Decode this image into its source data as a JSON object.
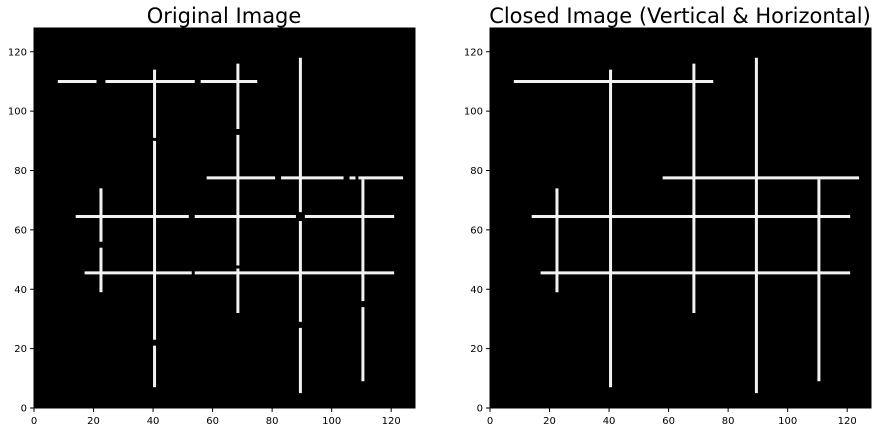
{
  "figure": {
    "background": "#ffffff",
    "panel_background": "#000000",
    "line_color": "#f2f2f2"
  },
  "chart_data": [
    {
      "type": "image",
      "title": "Original Image",
      "xlabel": "",
      "ylabel": "",
      "xlim": [
        0,
        128
      ],
      "ylim": [
        0,
        128
      ],
      "xticks": [
        0,
        20,
        40,
        60,
        80,
        100,
        120
      ],
      "yticks": [
        0,
        20,
        40,
        60,
        80,
        100,
        120
      ],
      "segments": [
        {
          "orientation": "h",
          "y": 110,
          "x": [
            8,
            21
          ]
        },
        {
          "orientation": "h",
          "y": 110,
          "x": [
            24,
            54
          ]
        },
        {
          "orientation": "h",
          "y": 110,
          "x": [
            56,
            75
          ]
        },
        {
          "orientation": "h",
          "y": 77.5,
          "x": [
            58,
            81
          ]
        },
        {
          "orientation": "h",
          "y": 77.5,
          "x": [
            83,
            104
          ]
        },
        {
          "orientation": "h",
          "y": 77.5,
          "x": [
            106,
            108
          ]
        },
        {
          "orientation": "h",
          "y": 77.5,
          "x": [
            109,
            124
          ]
        },
        {
          "orientation": "h",
          "y": 64.5,
          "x": [
            14,
            52
          ]
        },
        {
          "orientation": "h",
          "y": 64.5,
          "x": [
            54,
            88
          ]
        },
        {
          "orientation": "h",
          "y": 64.5,
          "x": [
            91,
            121
          ]
        },
        {
          "orientation": "h",
          "y": 45.5,
          "x": [
            17,
            53
          ]
        },
        {
          "orientation": "h",
          "y": 45.5,
          "x": [
            54,
            121
          ]
        },
        {
          "orientation": "v",
          "x": 40.5,
          "y": [
            91,
            114
          ]
        },
        {
          "orientation": "v",
          "x": 40.5,
          "y": [
            23,
            90
          ]
        },
        {
          "orientation": "v",
          "x": 40.5,
          "y": [
            7,
            21
          ]
        },
        {
          "orientation": "v",
          "x": 68.5,
          "y": [
            94,
            116
          ]
        },
        {
          "orientation": "v",
          "x": 68.5,
          "y": [
            48,
            92
          ]
        },
        {
          "orientation": "v",
          "x": 68.5,
          "y": [
            32,
            47
          ]
        },
        {
          "orientation": "v",
          "x": 89.5,
          "y": [
            66,
            118
          ]
        },
        {
          "orientation": "v",
          "x": 89.5,
          "y": [
            29,
            63
          ]
        },
        {
          "orientation": "v",
          "x": 89.5,
          "y": [
            5,
            27
          ]
        },
        {
          "orientation": "v",
          "x": 110.5,
          "y": [
            36,
            77
          ]
        },
        {
          "orientation": "v",
          "x": 110.5,
          "y": [
            9,
            34
          ]
        },
        {
          "orientation": "v",
          "x": 22.5,
          "y": [
            56,
            74
          ]
        },
        {
          "orientation": "v",
          "x": 22.5,
          "y": [
            39,
            54
          ]
        }
      ]
    },
    {
      "type": "image",
      "title": "Closed Image (Vertical & Horizontal)",
      "xlabel": "",
      "ylabel": "",
      "xlim": [
        0,
        128
      ],
      "ylim": [
        0,
        128
      ],
      "xticks": [
        0,
        20,
        40,
        60,
        80,
        100,
        120
      ],
      "yticks": [
        0,
        20,
        40,
        60,
        80,
        100,
        120
      ],
      "segments": [
        {
          "orientation": "h",
          "y": 110,
          "x": [
            8,
            75
          ]
        },
        {
          "orientation": "h",
          "y": 77.5,
          "x": [
            58,
            124
          ]
        },
        {
          "orientation": "h",
          "y": 64.5,
          "x": [
            14,
            121
          ]
        },
        {
          "orientation": "h",
          "y": 45.5,
          "x": [
            17,
            121
          ]
        },
        {
          "orientation": "v",
          "x": 40.5,
          "y": [
            7,
            114
          ]
        },
        {
          "orientation": "v",
          "x": 68.5,
          "y": [
            32,
            116
          ]
        },
        {
          "orientation": "v",
          "x": 89.5,
          "y": [
            5,
            118
          ]
        },
        {
          "orientation": "v",
          "x": 110.5,
          "y": [
            9,
            77
          ]
        },
        {
          "orientation": "v",
          "x": 22.5,
          "y": [
            39,
            74
          ]
        }
      ]
    }
  ]
}
